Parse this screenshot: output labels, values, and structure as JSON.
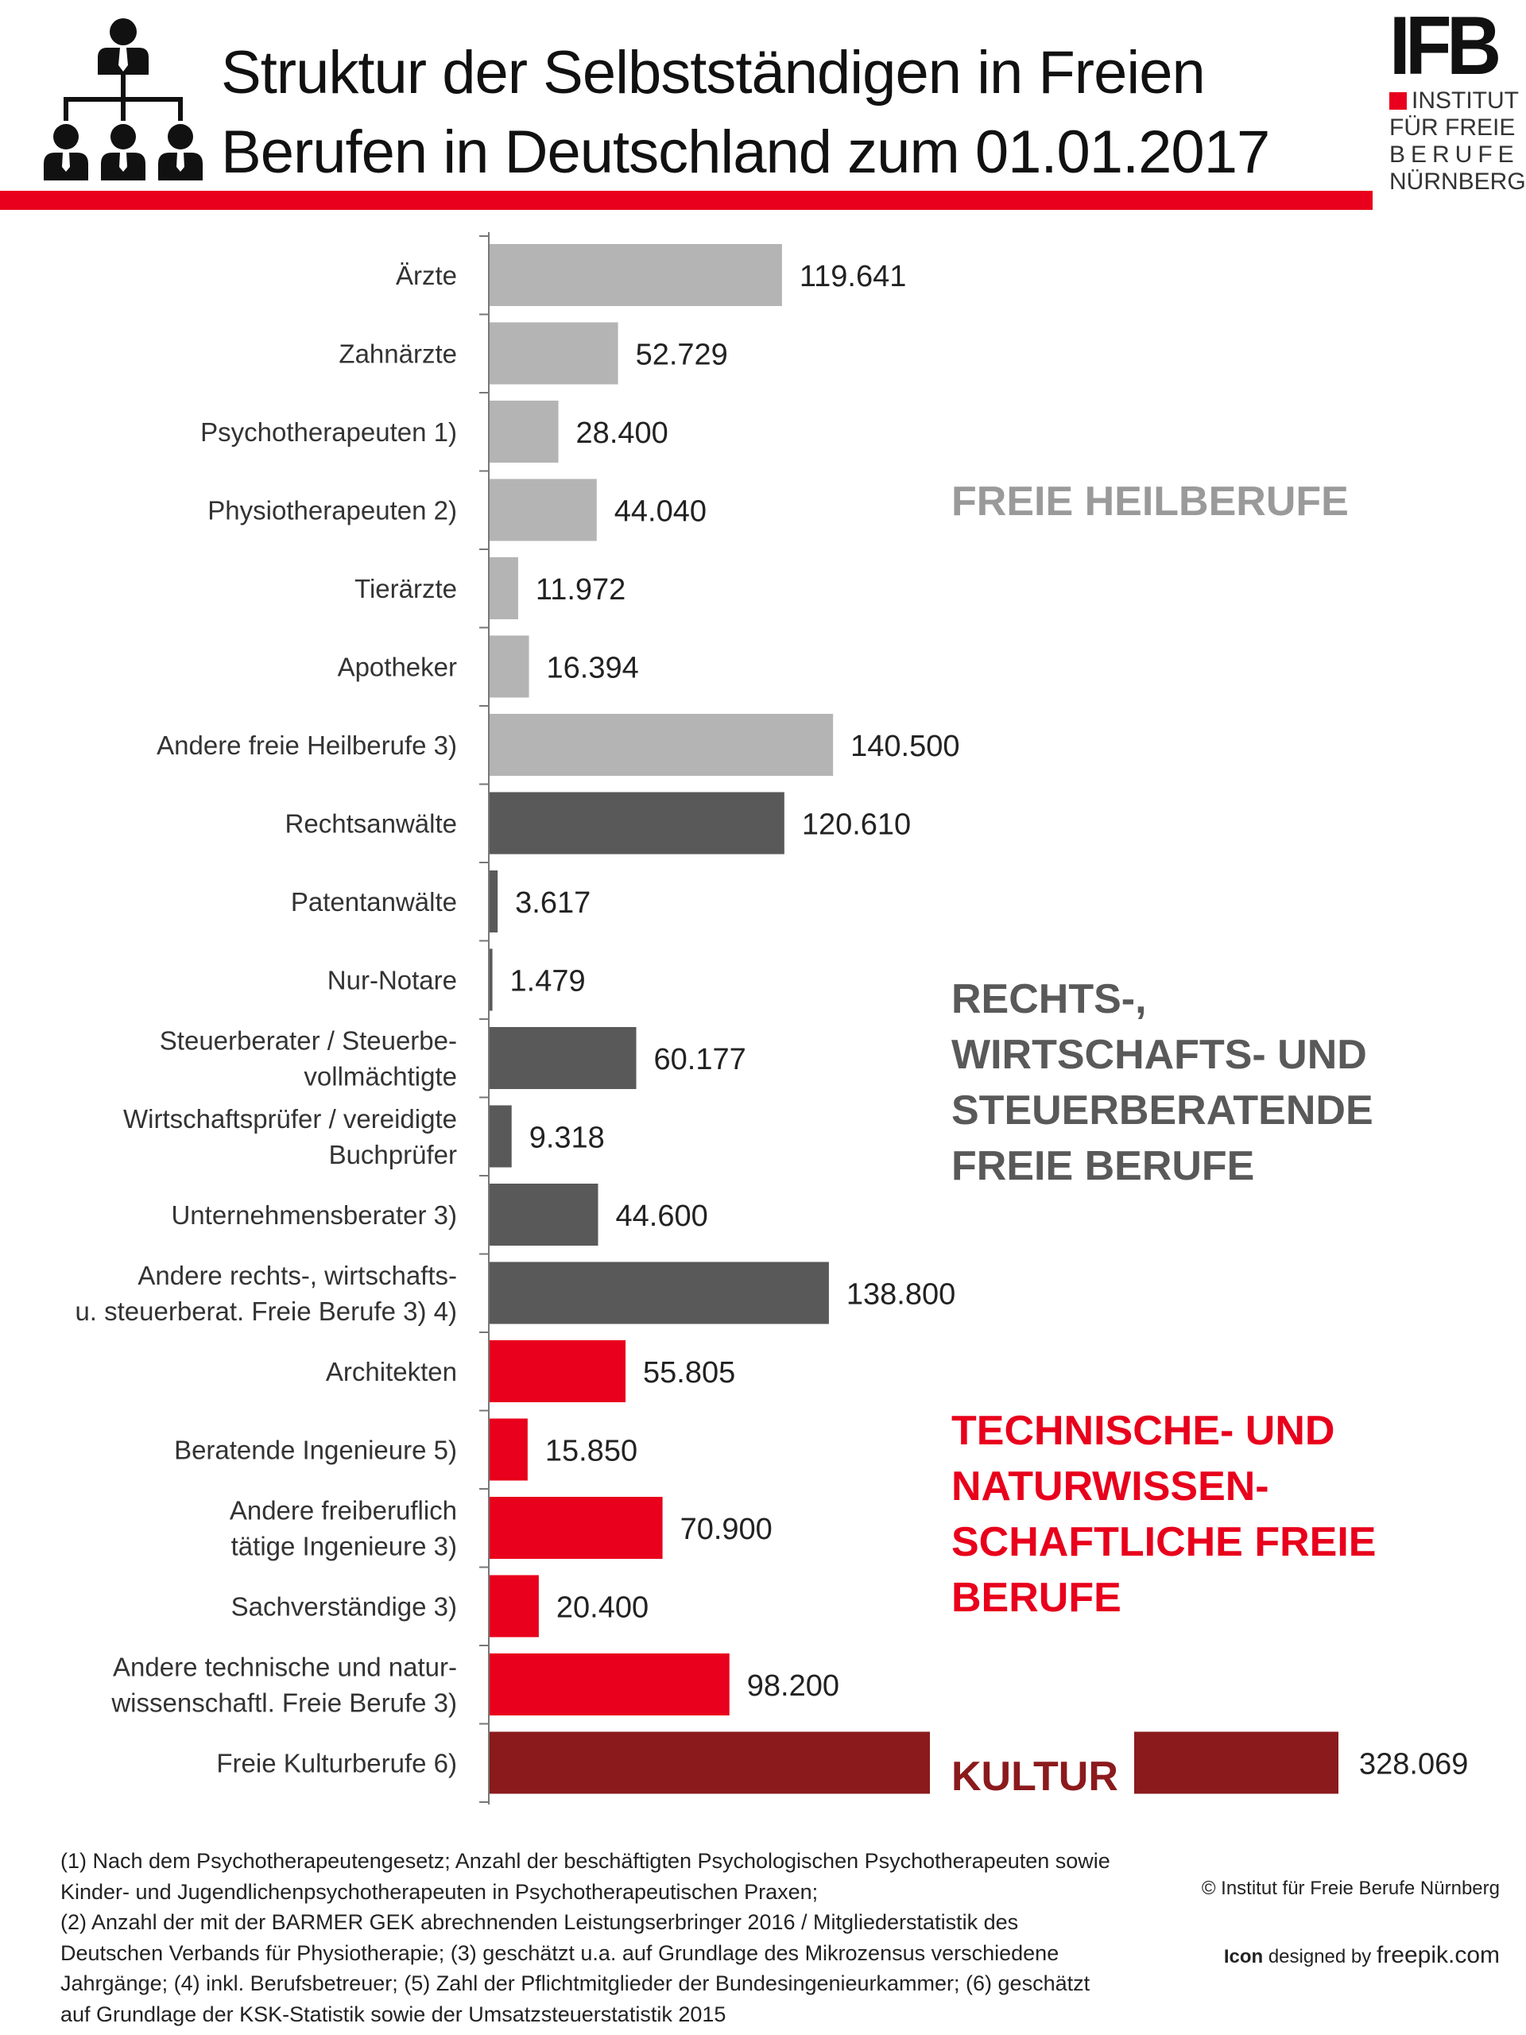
{
  "header": {
    "title_line1": "Struktur der Selbstständigen in Freien",
    "title_line2": "Berufen in Deutschland zum 01.01.2017",
    "icon": "organization-chart-icon",
    "logo": {
      "mark": "IFB",
      "line1": "INSTITUT",
      "line2": "FÜR FREIE",
      "line3": "BERUFE",
      "line4": "NÜRNBERG"
    }
  },
  "colors": {
    "heilberufe": "#b4b4b4",
    "rechts": "#595959",
    "technik": "#e8001c",
    "kultur": "#8b1a1c",
    "heilberufe_label": "#9a9a9a",
    "accent_rule": "#e8001c"
  },
  "chart_data": {
    "type": "bar",
    "orientation": "horizontal",
    "title": "Struktur der Selbstständigen in Freien Berufen in Deutschland zum 01.01.2017",
    "xlabel": "",
    "ylabel": "",
    "grid": false,
    "categories": [
      [
        "Ärzte"
      ],
      [
        "Zahnärzte"
      ],
      [
        "Psychotherapeuten  1)"
      ],
      [
        "Physiotherapeuten 2)"
      ],
      [
        "Tierärzte"
      ],
      [
        "Apotheker"
      ],
      [
        "Andere freie Heilberufe 3)"
      ],
      [
        "Rechtsanwälte"
      ],
      [
        "Patentanwälte"
      ],
      [
        "Nur-Notare"
      ],
      [
        "Steuerberater / Steuerbe-",
        "vollmächtigte"
      ],
      [
        "Wirtschaftsprüfer / vereidigte",
        "Buchprüfer"
      ],
      [
        "Unternehmensberater 3)"
      ],
      [
        "Andere rechts-, wirtschafts-",
        "u. steuerberat. Freie Berufe 3) 4)"
      ],
      [
        "Architekten"
      ],
      [
        "Beratende Ingenieure 5)"
      ],
      [
        "Andere freiberuflich",
        "tätige Ingenieure 3)"
      ],
      [
        "Sachverständige 3)"
      ],
      [
        "Andere technische und natur-",
        "wissenschaftl. Freie Berufe 3)"
      ],
      [
        "Freie Kulturberufe 6)"
      ]
    ],
    "values": [
      119641,
      52729,
      28400,
      44040,
      11972,
      16394,
      140500,
      120610,
      3617,
      1479,
      60177,
      9318,
      44600,
      138800,
      55805,
      15850,
      70900,
      20400,
      98200,
      328069
    ],
    "value_labels": [
      "119.641",
      "52.729",
      "28.400",
      "44.040",
      "11.972",
      "16.394",
      "140.500",
      "120.610",
      "3.617",
      "1.479",
      "60.177",
      "9.318",
      "44.600",
      "138.800",
      "55.805",
      "15.850",
      "70.900",
      "20.400",
      "98.200",
      "328.069"
    ],
    "groups": [
      "heilberufe",
      "heilberufe",
      "heilberufe",
      "heilberufe",
      "heilberufe",
      "heilberufe",
      "heilberufe",
      "rechts",
      "rechts",
      "rechts",
      "rechts",
      "rechts",
      "rechts",
      "rechts",
      "technik",
      "technik",
      "technik",
      "technik",
      "technik",
      "kultur"
    ],
    "group_labels": {
      "heilberufe": [
        "FREIE HEILBERUFE"
      ],
      "rechts": [
        "RECHTS-,",
        "WIRTSCHAFTS-  UND",
        "STEUERBERATENDE",
        "FREIE BERUFE"
      ],
      "technik": [
        "TECHNISCHE- UND",
        "NATURWISSEN-",
        "SCHAFTLICHE FREIE",
        "BERUFE"
      ],
      "kultur": [
        "KULTUR"
      ]
    },
    "axis_break_on": "Freie Kulturberufe 6)",
    "xlim": [
      0,
      140500
    ]
  },
  "footnotes": [
    "(1) Nach dem Psychotherapeutengesetz; Anzahl der  beschäftigten Psychologischen Psychotherapeuten sowie",
    "Kinder- und Jugendlichenpsychotherapeuten in Psychotherapeutischen Praxen;",
    "(2) Anzahl der mit der BARMER GEK abrechnenden Leistungserbringer 2016 / Mitgliederstatistik des",
    "Deutschen Verbands für Physiotherapie; (3) geschätzt u.a. auf Grundlage des Mikrozensus verschiedene",
    "Jahrgänge; (4) inkl. Berufsbetreuer; (5) Zahl der Pflichtmitglieder der Bundesingenieurkammer; (6) geschätzt",
    "auf Grundlage der KSK-Statistik sowie der Umsatzsteuerstatistik 2015"
  ],
  "copyright": "© Institut für Freie Berufe Nürnberg",
  "icon_credit": {
    "prefix": "Icon",
    "middle": " designed by ",
    "site": "freepik.com"
  }
}
